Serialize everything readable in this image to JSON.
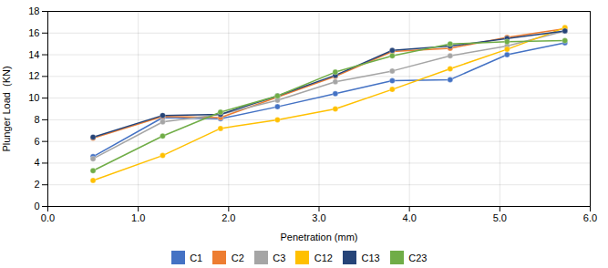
{
  "chart_data": {
    "type": "line",
    "xlabel": "Penetration (mm)",
    "ylabel": "Plunger Load  (KN)",
    "x": [
      0.5,
      1.27,
      1.91,
      2.54,
      3.18,
      3.81,
      4.45,
      5.08,
      5.72
    ],
    "series": [
      {
        "name": "C1",
        "color": "#4472C4",
        "marker": "circle",
        "values": [
          4.6,
          8.2,
          8.1,
          9.2,
          10.4,
          11.6,
          11.7,
          14.0,
          15.1
        ]
      },
      {
        "name": "C2",
        "color": "#ED7D31",
        "marker": "circle",
        "values": [
          6.3,
          8.3,
          8.2,
          10.1,
          12.0,
          14.3,
          14.6,
          15.6,
          16.4
        ]
      },
      {
        "name": "C3",
        "color": "#A5A5A5",
        "marker": "circle",
        "values": [
          4.4,
          7.8,
          8.5,
          9.8,
          11.5,
          12.5,
          13.9,
          14.8,
          16.2
        ]
      },
      {
        "name": "C12",
        "color": "#FFC000",
        "marker": "circle",
        "values": [
          2.4,
          4.7,
          7.2,
          8.0,
          9.0,
          10.8,
          12.7,
          14.5,
          16.5
        ]
      },
      {
        "name": "C13",
        "color": "#264478",
        "marker": "circle",
        "values": [
          6.4,
          8.4,
          8.5,
          10.2,
          12.1,
          14.4,
          14.8,
          15.5,
          16.2
        ]
      },
      {
        "name": "C23",
        "color": "#70AD47",
        "marker": "circle",
        "values": [
          3.3,
          6.5,
          8.7,
          10.2,
          12.4,
          13.9,
          15.0,
          15.2,
          15.3
        ]
      }
    ],
    "xlim": [
      0,
      6
    ],
    "ylim": [
      0,
      18
    ],
    "xticks": [
      0,
      1,
      2,
      3,
      4,
      5,
      6
    ],
    "yticks": [
      0,
      2,
      4,
      6,
      8,
      10,
      12,
      14,
      16,
      18
    ],
    "grid": true,
    "legend": "bottom"
  }
}
